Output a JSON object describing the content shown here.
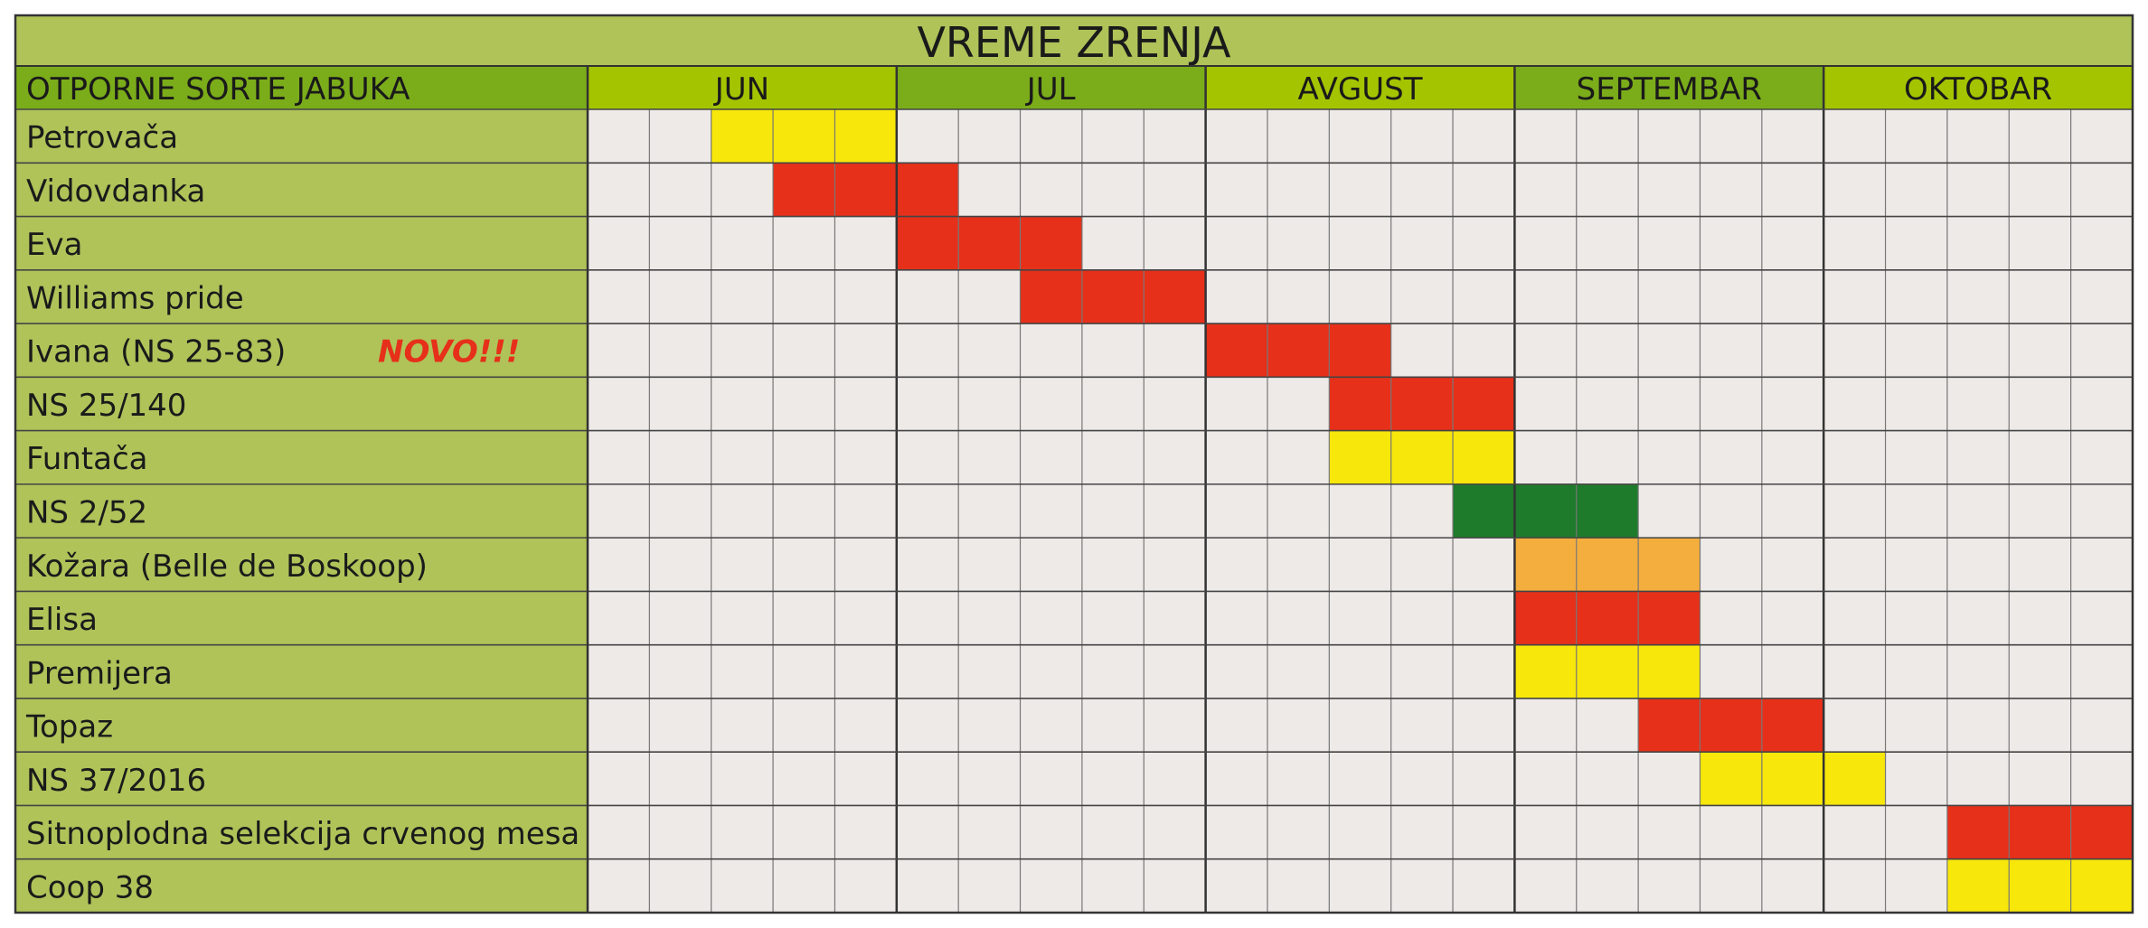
{
  "title": "VREME ZRENJA",
  "header": {
    "label": "OTPORNE SORTE JABUKA",
    "months": [
      "JUN",
      "JUL",
      "AVGUST",
      "SEPTEMBAR",
      "OKTOBAR"
    ]
  },
  "colors": {
    "title": "#afc359",
    "name_cells": "#afc359",
    "header_dark": "#7bac1a",
    "header_light": "#a4c400",
    "empty_cell": "#eeeae8",
    "note": "#e6301a"
  },
  "rows": [
    {
      "name": "Petrovača",
      "period": [
        2,
        4
      ],
      "color": "#f7e70a"
    },
    {
      "name": "Vidovdanka",
      "period": [
        3,
        5
      ],
      "color": "#e6301a"
    },
    {
      "name": "Eva",
      "period": [
        5,
        7
      ],
      "color": "#e6301a"
    },
    {
      "name": "Williams pride",
      "period": [
        7,
        9
      ],
      "color": "#e6301a"
    },
    {
      "name": "Ivana (NS 25-83)",
      "note": "NOVO!!!",
      "period": [
        10,
        12
      ],
      "color": "#e6301a"
    },
    {
      "name": "NS 25/140",
      "period": [
        12,
        14
      ],
      "color": "#e6301a"
    },
    {
      "name": "Funtača",
      "period": [
        12,
        14
      ],
      "color": "#f7e70a"
    },
    {
      "name": "NS 2/52",
      "period": [
        14,
        16
      ],
      "color": "#1e7b2b"
    },
    {
      "name": "Kožara (Belle de Boskoop)",
      "period": [
        15,
        17
      ],
      "color": "#f4ae3d"
    },
    {
      "name": "Elisa",
      "period": [
        15,
        17
      ],
      "color": "#e6301a"
    },
    {
      "name": "Premijera",
      "period": [
        15,
        17
      ],
      "color": "#f7e70a"
    },
    {
      "name": "Topaz",
      "period": [
        17,
        19
      ],
      "color": "#e6301a"
    },
    {
      "name": "NS 37/2016",
      "period": [
        18,
        20
      ],
      "color": "#f7e70a"
    },
    {
      "name": "Sitnoplodna selekcija crvenog mesa",
      "period": [
        22,
        24
      ],
      "color": "#e6301a"
    },
    {
      "name": "Coop 38",
      "period": [
        22,
        24
      ],
      "color": "#f7e70a"
    }
  ]
}
